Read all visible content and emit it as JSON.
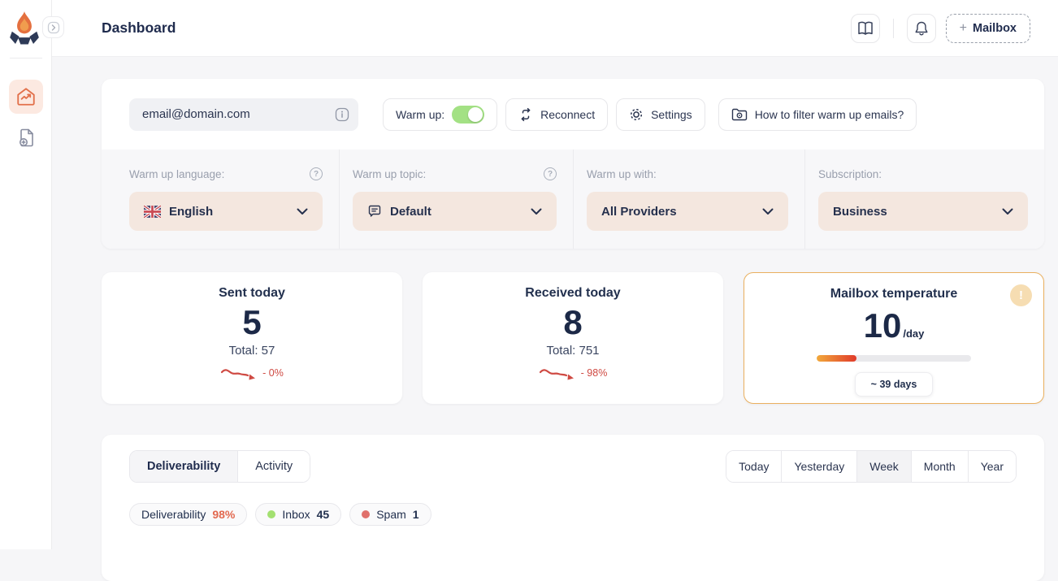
{
  "colors": {
    "brand_orange": "#e2704a",
    "toggle_green": "#a3e184",
    "trend_red": "#cf4a43",
    "temperature_border": "#eab05f",
    "dropdown_bg": "#f4e7df",
    "inbox_dot": "#a3e071",
    "spam_dot": "#e0716c",
    "deliverability_pct_color": "#e2694f"
  },
  "sidebar": {
    "expand_glyph": "›",
    "items": [
      {
        "name": "dashboard",
        "active": true
      },
      {
        "name": "add-mailbox",
        "active": false
      }
    ]
  },
  "header": {
    "title": "Dashboard",
    "mailbox_plus": "+",
    "mailbox_label": "Mailbox"
  },
  "toolbar": {
    "email": "email@domain.com",
    "warm_up_label": "Warm up:",
    "warm_up_on": true,
    "reconnect_label": "Reconnect",
    "settings_label": "Settings",
    "how_to_label": "How to filter warm up emails?"
  },
  "settings_row": {
    "help_glyph": "?",
    "columns": [
      {
        "label": "Warm up language:",
        "value": "English",
        "has_help": true,
        "icon": "uk-flag"
      },
      {
        "label": "Warm up topic:",
        "value": "Default",
        "has_help": true,
        "icon": "chat"
      },
      {
        "label": "Warm up with:",
        "value": "All Providers",
        "has_help": false
      },
      {
        "label": "Subscription:",
        "value": "Business",
        "has_help": false
      }
    ]
  },
  "stats": {
    "sent": {
      "title": "Sent today",
      "value": "5",
      "total": "Total: 57",
      "trend": "- 0%"
    },
    "received": {
      "title": "Received today",
      "value": "8",
      "total": "Total: 751",
      "trend": "- 98%"
    },
    "temperature": {
      "title": "Mailbox temperature",
      "value": "10",
      "unit": "/day",
      "progress_pct": 26,
      "days_label": "~ 39 days",
      "warning_glyph": "!"
    }
  },
  "chart_section": {
    "tabs": [
      {
        "label": "Deliverability",
        "active": true
      },
      {
        "label": "Activity",
        "active": false
      }
    ],
    "ranges": [
      {
        "label": "Today",
        "active": false
      },
      {
        "label": "Yesterday",
        "active": false
      },
      {
        "label": "Week",
        "active": true
      },
      {
        "label": "Month",
        "active": false
      },
      {
        "label": "Year",
        "active": false
      }
    ],
    "legend": [
      {
        "label": "Deliverability",
        "value": "98%"
      },
      {
        "label": "Inbox",
        "value": "45"
      },
      {
        "label": "Spam",
        "value": "1"
      }
    ]
  }
}
